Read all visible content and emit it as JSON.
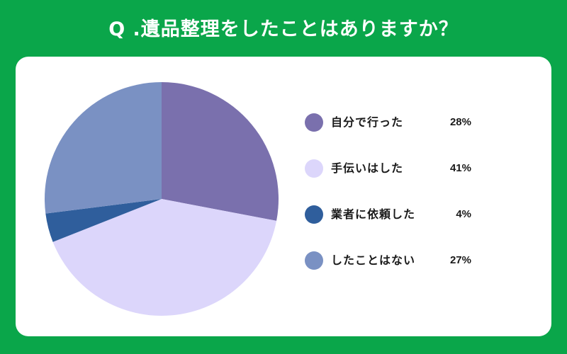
{
  "header": {
    "title": "Q .遺品整理をしたことはありますか？"
  },
  "colors": {
    "background": "#0aa64a",
    "card": "#ffffff"
  },
  "legend": [
    {
      "label": "自分で行った",
      "value": "28%",
      "color": "#7a70ad"
    },
    {
      "label": "手伝いはした",
      "value": "41%",
      "color": "#dcd6fb"
    },
    {
      "label": "業者に依頼した",
      "value": "4%",
      "color": "#2f5e9c"
    },
    {
      "label": "したことはない",
      "value": "27%",
      "color": "#7a91c3"
    }
  ],
  "chart_data": {
    "type": "pie",
    "title": "Q .遺品整理をしたことはありますか？",
    "categories": [
      "自分で行った",
      "手伝いはした",
      "業者に依頼した",
      "したことはない"
    ],
    "values": [
      28,
      41,
      4,
      27
    ],
    "unit": "%",
    "colors": [
      "#7a70ad",
      "#dcd6fb",
      "#2f5e9c",
      "#7a91c3"
    ],
    "start_angle": "12 o'clock",
    "direction": "clockwise",
    "legend_position": "right"
  }
}
